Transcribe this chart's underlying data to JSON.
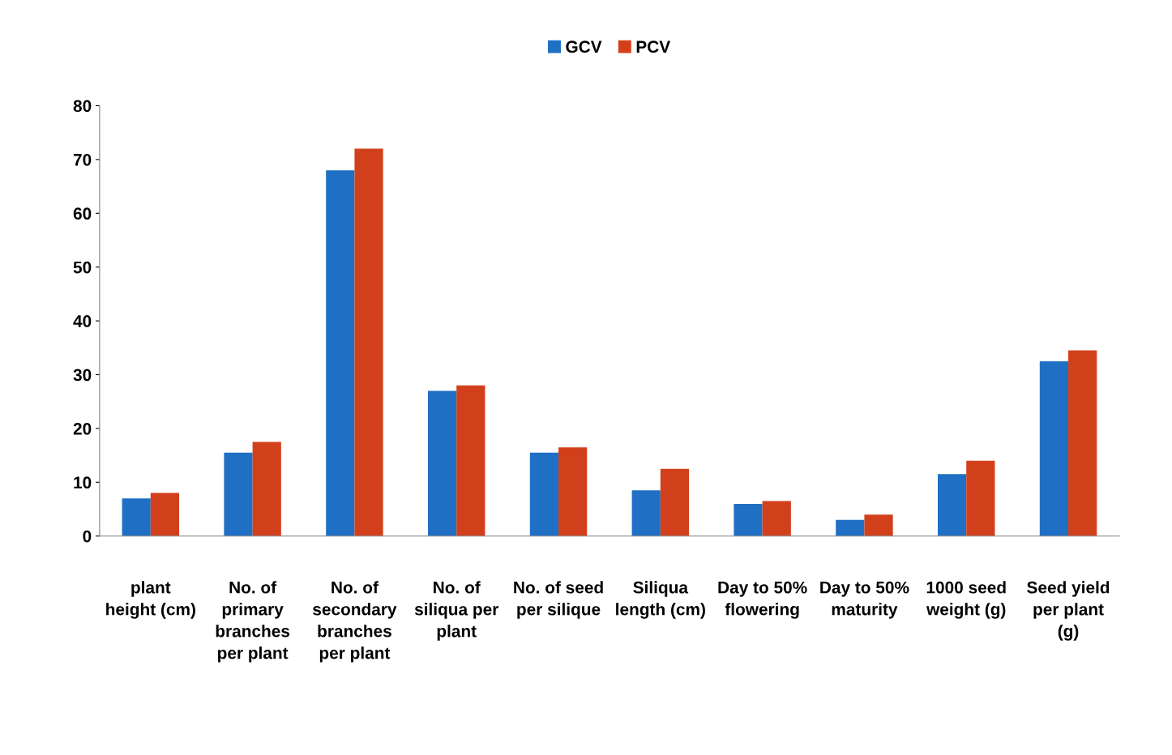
{
  "chart_data": {
    "type": "bar",
    "categories": [
      "plant height (cm)",
      "No. of primary branches per plant",
      "No. of secondary branches per plant",
      "No. of siliqua per plant",
      "No. of seed per silique",
      "Siliqua length (cm)",
      "Day to 50% flowering",
      "Day to 50% maturity",
      "1000 seed weight (g)",
      "Seed yield per plant (g)"
    ],
    "series": [
      {
        "name": "GCV",
        "color": "#1f6fc5",
        "values": [
          7,
          15.5,
          68,
          27,
          15.5,
          8.5,
          6,
          3,
          11.5,
          32.5
        ]
      },
      {
        "name": "PCV",
        "color": "#d2401b",
        "values": [
          8,
          17.5,
          72,
          28,
          16.5,
          12.5,
          6.5,
          4,
          14,
          34.5
        ]
      }
    ],
    "ylim": [
      0,
      80
    ],
    "yticks": [
      0,
      10,
      20,
      30,
      40,
      50,
      60,
      70,
      80
    ],
    "grid": false,
    "legend": "top"
  }
}
